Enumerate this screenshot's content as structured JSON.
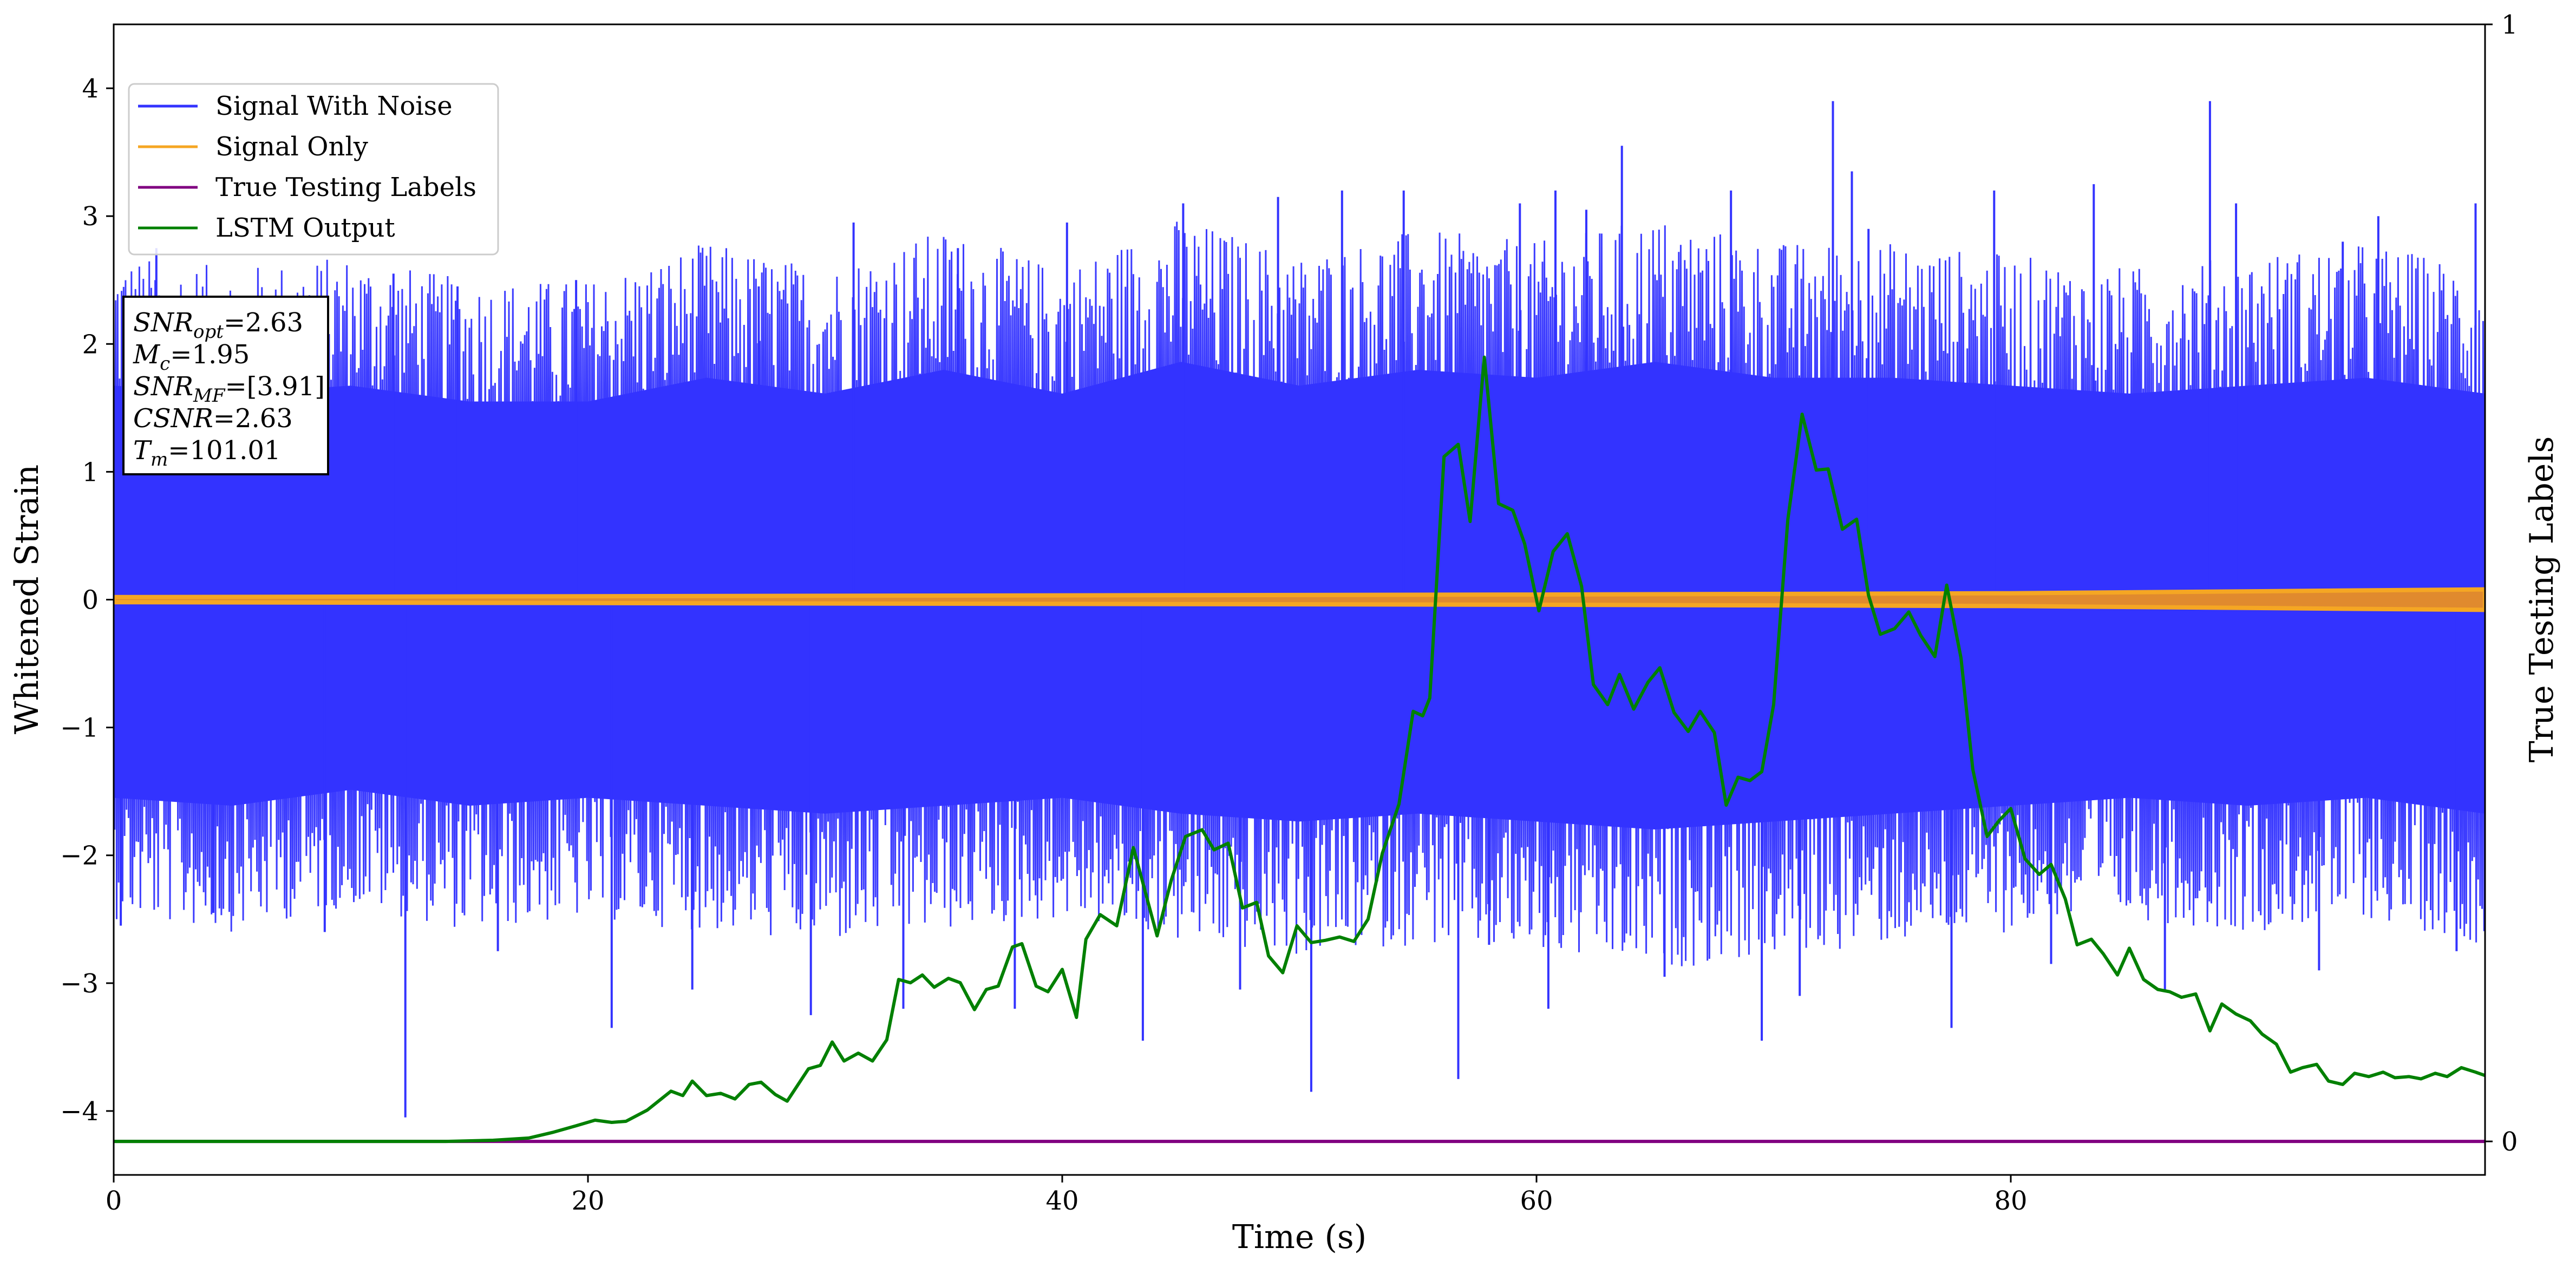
{
  "chart_data": {
    "type": "line",
    "title": "",
    "xlabel": "Time (s)",
    "ylabel": "Whitened Strain",
    "y2label": "True Testing Labels",
    "xlim": [
      0,
      100
    ],
    "ylim": [
      -4.5,
      4.5
    ],
    "y2lim": [
      -0.03,
      1.0
    ],
    "xticks": [
      0,
      20,
      40,
      60,
      80
    ],
    "yticks": [
      -4,
      -3,
      -2,
      -1,
      0,
      1,
      2,
      3,
      4
    ],
    "y2ticks": [
      0,
      1
    ],
    "grid": false,
    "legend_position": "top-left",
    "series": [
      {
        "name": "Signal With Noise",
        "color": "#3333ff",
        "axis": "left",
        "envelope_upper": [
          [
            0,
            2.7
          ],
          [
            5,
            2.6
          ],
          [
            10,
            2.7
          ],
          [
            15,
            2.5
          ],
          [
            20,
            2.5
          ],
          [
            25,
            2.8
          ],
          [
            30,
            2.6
          ],
          [
            35,
            2.9
          ],
          [
            40,
            2.6
          ],
          [
            45,
            3.0
          ],
          [
            50,
            2.7
          ],
          [
            55,
            2.9
          ],
          [
            60,
            2.8
          ],
          [
            65,
            3.0
          ],
          [
            70,
            2.8
          ],
          [
            75,
            2.8
          ],
          [
            80,
            2.7
          ],
          [
            85,
            2.6
          ],
          [
            90,
            2.7
          ],
          [
            95,
            2.8
          ],
          [
            100,
            2.6
          ]
        ],
        "envelope_lower": [
          [
            0,
            -2.5
          ],
          [
            5,
            -2.6
          ],
          [
            10,
            -2.4
          ],
          [
            15,
            -2.6
          ],
          [
            20,
            -2.5
          ],
          [
            25,
            -2.6
          ],
          [
            30,
            -2.7
          ],
          [
            35,
            -2.6
          ],
          [
            40,
            -2.5
          ],
          [
            45,
            -2.7
          ],
          [
            50,
            -2.8
          ],
          [
            55,
            -2.7
          ],
          [
            60,
            -2.8
          ],
          [
            65,
            -2.9
          ],
          [
            70,
            -2.8
          ],
          [
            75,
            -2.7
          ],
          [
            80,
            -2.6
          ],
          [
            85,
            -2.5
          ],
          [
            90,
            -2.6
          ],
          [
            95,
            -2.5
          ],
          [
            100,
            -2.7
          ]
        ],
        "spikes": [
          [
            0.3,
            -2.55
          ],
          [
            1.8,
            2.75
          ],
          [
            4.2,
            -2.45
          ],
          [
            8.9,
            -2.6
          ],
          [
            12.3,
            -4.05
          ],
          [
            14.5,
            2.45
          ],
          [
            16.2,
            -2.75
          ],
          [
            19.5,
            2.5
          ],
          [
            21.0,
            -3.35
          ],
          [
            24.4,
            -3.05
          ],
          [
            27.2,
            2.45
          ],
          [
            29.4,
            -3.25
          ],
          [
            31.2,
            2.95
          ],
          [
            33.3,
            -3.2
          ],
          [
            35.6,
            2.75
          ],
          [
            38.0,
            -3.2
          ],
          [
            40.2,
            2.95
          ],
          [
            43.4,
            -3.45
          ],
          [
            45.1,
            3.1
          ],
          [
            47.5,
            -3.05
          ],
          [
            49.1,
            3.15
          ],
          [
            50.5,
            -3.85
          ],
          [
            51.8,
            3.2
          ],
          [
            54.4,
            3.2
          ],
          [
            56.7,
            -3.75
          ],
          [
            59.3,
            3.1
          ],
          [
            60.5,
            -3.2
          ],
          [
            62.1,
            3.05
          ],
          [
            63.6,
            3.55
          ],
          [
            65.4,
            -2.95
          ],
          [
            68.2,
            3.2
          ],
          [
            69.5,
            -3.45
          ],
          [
            71.1,
            -3.1
          ],
          [
            73.3,
            3.35
          ],
          [
            74.0,
            2.9
          ],
          [
            77.5,
            -3.35
          ],
          [
            79.3,
            3.2
          ],
          [
            81.7,
            -2.85
          ],
          [
            83.5,
            3.25
          ],
          [
            86.5,
            -3.05
          ],
          [
            89.5,
            3.1
          ],
          [
            93.0,
            -2.9
          ],
          [
            95.5,
            3.0
          ],
          [
            98.8,
            -2.75
          ],
          [
            99.6,
            3.1
          ],
          [
            11.8,
            2.55
          ],
          [
            58.0,
            -2.7
          ],
          [
            60.8,
            3.2
          ],
          [
            72.5,
            3.9
          ],
          [
            88.4,
            3.9
          ],
          [
            94.0,
            2.8
          ]
        ]
      },
      {
        "name": "Signal Only",
        "color": "#f5a623",
        "axis": "left",
        "envelope_upper": [
          [
            0,
            0.02
          ],
          [
            30,
            0.03
          ],
          [
            60,
            0.04
          ],
          [
            80,
            0.05
          ],
          [
            100,
            0.08
          ]
        ],
        "envelope_lower": [
          [
            0,
            -0.02
          ],
          [
            30,
            -0.03
          ],
          [
            60,
            -0.04
          ],
          [
            80,
            -0.05
          ],
          [
            100,
            -0.08
          ]
        ]
      },
      {
        "name": "True Testing Labels",
        "color": "#800080",
        "axis": "right",
        "points": [
          [
            0,
            0
          ],
          [
            100,
            0
          ]
        ]
      },
      {
        "name": "LSTM Output",
        "color": "#008000",
        "axis": "right",
        "points": [
          [
            0,
            0.0
          ],
          [
            14,
            0.0
          ],
          [
            16,
            0.001
          ],
          [
            17.5,
            0.003
          ],
          [
            18.5,
            0.008
          ],
          [
            19.5,
            0.014
          ],
          [
            20.3,
            0.019
          ],
          [
            21,
            0.017
          ],
          [
            21.6,
            0.018
          ],
          [
            22.5,
            0.028
          ],
          [
            23.5,
            0.045
          ],
          [
            24,
            0.041
          ],
          [
            24.4,
            0.054
          ],
          [
            25,
            0.041
          ],
          [
            25.6,
            0.043
          ],
          [
            26.2,
            0.038
          ],
          [
            26.8,
            0.051
          ],
          [
            27.3,
            0.053
          ],
          [
            27.9,
            0.042
          ],
          [
            28.4,
            0.036
          ],
          [
            29.3,
            0.065
          ],
          [
            29.8,
            0.068
          ],
          [
            30.3,
            0.089
          ],
          [
            30.8,
            0.072
          ],
          [
            31.4,
            0.079
          ],
          [
            32,
            0.072
          ],
          [
            32.6,
            0.091
          ],
          [
            33.1,
            0.145
          ],
          [
            33.6,
            0.142
          ],
          [
            34.1,
            0.149
          ],
          [
            34.6,
            0.138
          ],
          [
            35.2,
            0.146
          ],
          [
            35.7,
            0.142
          ],
          [
            36.3,
            0.118
          ],
          [
            36.8,
            0.136
          ],
          [
            37.3,
            0.139
          ],
          [
            37.9,
            0.174
          ],
          [
            38.3,
            0.177
          ],
          [
            38.9,
            0.139
          ],
          [
            39.4,
            0.134
          ],
          [
            40,
            0.154
          ],
          [
            40.6,
            0.111
          ],
          [
            41,
            0.181
          ],
          [
            41.6,
            0.203
          ],
          [
            42.3,
            0.193
          ],
          [
            43,
            0.263
          ],
          [
            44,
            0.184
          ],
          [
            44.6,
            0.234
          ],
          [
            45.2,
            0.273
          ],
          [
            45.9,
            0.279
          ],
          [
            46.4,
            0.261
          ],
          [
            47,
            0.267
          ],
          [
            47.6,
            0.209
          ],
          [
            48.2,
            0.214
          ],
          [
            48.7,
            0.166
          ],
          [
            49.3,
            0.151
          ],
          [
            49.9,
            0.193
          ],
          [
            50.5,
            0.178
          ],
          [
            51.1,
            0.18
          ],
          [
            51.7,
            0.183
          ],
          [
            52.3,
            0.179
          ],
          [
            52.9,
            0.199
          ],
          [
            53.5,
            0.258
          ],
          [
            54.2,
            0.302
          ],
          [
            54.8,
            0.385
          ],
          [
            55.2,
            0.381
          ],
          [
            55.5,
            0.397
          ],
          [
            56.1,
            0.613
          ],
          [
            56.7,
            0.624
          ],
          [
            57.2,
            0.555
          ],
          [
            57.8,
            0.702
          ],
          [
            58.4,
            0.571
          ],
          [
            59,
            0.565
          ],
          [
            59.5,
            0.535
          ],
          [
            60.1,
            0.475
          ],
          [
            60.7,
            0.528
          ],
          [
            61.3,
            0.544
          ],
          [
            61.9,
            0.497
          ],
          [
            62.4,
            0.409
          ],
          [
            63,
            0.391
          ],
          [
            63.5,
            0.418
          ],
          [
            64.1,
            0.387
          ],
          [
            64.7,
            0.411
          ],
          [
            65.2,
            0.424
          ],
          [
            65.8,
            0.384
          ],
          [
            66.4,
            0.367
          ],
          [
            66.9,
            0.385
          ],
          [
            67.5,
            0.366
          ],
          [
            68,
            0.301
          ],
          [
            68.5,
            0.326
          ],
          [
            69,
            0.323
          ],
          [
            69.5,
            0.331
          ],
          [
            70,
            0.391
          ],
          [
            70.6,
            0.557
          ],
          [
            71.2,
            0.651
          ],
          [
            71.8,
            0.601
          ],
          [
            72.3,
            0.602
          ],
          [
            72.9,
            0.548
          ],
          [
            73.5,
            0.557
          ],
          [
            74,
            0.489
          ],
          [
            74.5,
            0.454
          ],
          [
            75.1,
            0.459
          ],
          [
            75.7,
            0.474
          ],
          [
            76.2,
            0.453
          ],
          [
            76.8,
            0.434
          ],
          [
            77.3,
            0.498
          ],
          [
            77.9,
            0.433
          ],
          [
            78.4,
            0.333
          ],
          [
            79,
            0.273
          ],
          [
            79.5,
            0.287
          ],
          [
            80,
            0.298
          ],
          [
            80.6,
            0.253
          ],
          [
            81.2,
            0.239
          ],
          [
            81.7,
            0.248
          ],
          [
            82.3,
            0.217
          ],
          [
            82.8,
            0.176
          ],
          [
            83.4,
            0.181
          ],
          [
            83.9,
            0.168
          ],
          [
            84.5,
            0.149
          ],
          [
            85,
            0.173
          ],
          [
            85.6,
            0.145
          ],
          [
            86.2,
            0.136
          ],
          [
            86.7,
            0.134
          ],
          [
            87.2,
            0.129
          ],
          [
            87.8,
            0.132
          ],
          [
            88.4,
            0.099
          ],
          [
            88.9,
            0.123
          ],
          [
            89.5,
            0.114
          ],
          [
            90.1,
            0.108
          ],
          [
            90.6,
            0.096
          ],
          [
            91.2,
            0.087
          ],
          [
            91.8,
            0.062
          ],
          [
            92.3,
            0.066
          ],
          [
            92.9,
            0.069
          ],
          [
            93.4,
            0.054
          ],
          [
            94,
            0.051
          ],
          [
            94.5,
            0.061
          ],
          [
            95.1,
            0.058
          ],
          [
            95.7,
            0.062
          ],
          [
            96.2,
            0.057
          ],
          [
            96.8,
            0.058
          ],
          [
            97.3,
            0.056
          ],
          [
            97.9,
            0.061
          ],
          [
            98.4,
            0.058
          ],
          [
            99,
            0.066
          ],
          [
            99.6,
            0.062
          ],
          [
            100,
            0.059
          ]
        ]
      }
    ]
  },
  "annotation": {
    "lines": [
      {
        "base": "SNR",
        "sub": "opt",
        "value": "=2.63"
      },
      {
        "base": "M",
        "sub": "c",
        "value": "=1.95"
      },
      {
        "base": "SNR",
        "sub": "MF",
        "value": "=[3.91]"
      },
      {
        "base": "CSNR",
        "sub": "",
        "value": "=2.63"
      },
      {
        "base": "T",
        "sub": "m",
        "value": "=101.01"
      }
    ]
  }
}
